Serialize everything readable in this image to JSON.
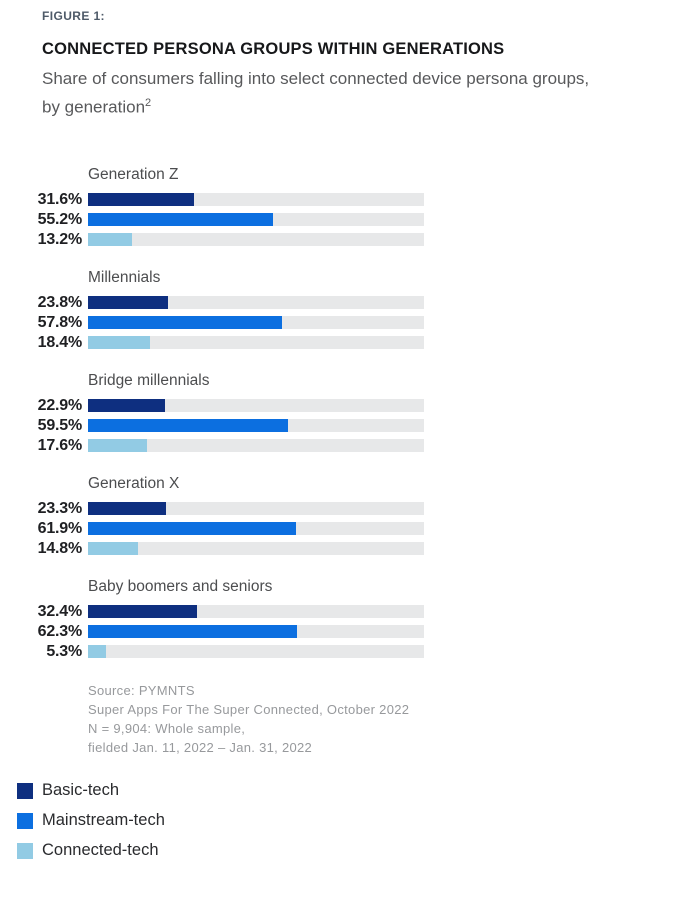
{
  "figure_label": "FIGURE 1:",
  "title": "CONNECTED PERSONA GROUPS WITHIN GENERATIONS",
  "subtitle": {
    "line1": "Share of consumers falling into select connected device persona groups,",
    "line2": "by generation",
    "superscript": "2"
  },
  "chart_data": {
    "type": "bar",
    "orientation": "horizontal",
    "xlim": [
      0,
      100
    ],
    "value_suffix": "%",
    "grid": false,
    "track_color": "#e7e8e9",
    "legend_position": "bottom-left",
    "categories": [
      "Generation Z",
      "Millennials",
      "Bridge millennials",
      "Generation X",
      "Baby boomers and seniors"
    ],
    "series": [
      {
        "name": "Basic-tech",
        "color": "#0e2f80",
        "values": [
          31.6,
          23.8,
          22.9,
          23.3,
          32.4
        ]
      },
      {
        "name": "Mainstream-tech",
        "color": "#0c6fe0",
        "values": [
          55.2,
          57.8,
          59.5,
          61.9,
          62.3
        ]
      },
      {
        "name": "Connected-tech",
        "color": "#92cbe4",
        "values": [
          13.2,
          18.4,
          17.6,
          14.8,
          5.3
        ]
      }
    ]
  },
  "source": {
    "lines": [
      "Source: PYMNTS",
      "Super Apps For The Super Connected, October 2022",
      "N = 9,904: Whole sample,",
      "fielded Jan. 11, 2022 – Jan. 31, 2022"
    ]
  },
  "legend": {
    "items": [
      {
        "label": "Basic-tech",
        "color": "#0e2f80"
      },
      {
        "label": "Mainstream-tech",
        "color": "#0c6fe0"
      },
      {
        "label": "Connected-tech",
        "color": "#92cbe4"
      }
    ]
  }
}
